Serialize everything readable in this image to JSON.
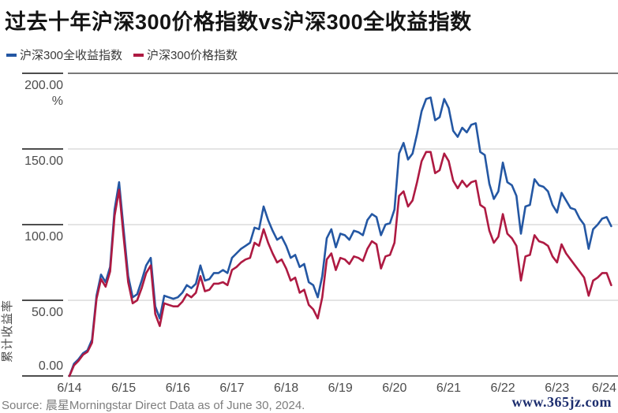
{
  "header": {
    "title": "过去十年沪深300价格指数vs沪深300全收益指数"
  },
  "legend": [
    {
      "label": "沪深300全收益指数",
      "color": "#2457a3"
    },
    {
      "label": "沪深300价格指数",
      "color": "#ae1a42"
    }
  ],
  "footer": {
    "source": "Source: 晨星Morningstar Direct Data as of June 30, 2024.",
    "watermark": "www.365jz.com"
  },
  "chart_data": {
    "type": "line",
    "title": "过去十年沪深300价格指数vs沪深300全收益指数",
    "ylabel": "累计收益率",
    "unit": "%",
    "ylim": [
      0,
      200
    ],
    "grid": true,
    "legend_position": "top-left",
    "frequency": "monthly",
    "x_start": "2014-06",
    "x_end": "2024-06",
    "x_ticks": [
      "6/14",
      "6/15",
      "6/16",
      "6/17",
      "6/18",
      "6/19",
      "6/20",
      "6/21",
      "6/22",
      "6/23",
      "6/24"
    ],
    "y_ticks": [
      {
        "value": 200,
        "label": "200.00"
      },
      {
        "value": 150,
        "label": "150.00"
      },
      {
        "value": 100,
        "label": "100.00"
      },
      {
        "value": 50,
        "label": "50.00"
      },
      {
        "value": 0,
        "label": "0.00"
      }
    ],
    "series": [
      {
        "name": "沪深300全收益指数",
        "color": "#2457a3",
        "values": [
          0,
          8,
          11,
          15,
          17,
          24,
          53,
          67,
          62,
          72,
          110,
          128,
          97,
          66,
          52,
          54,
          63,
          73,
          78,
          46,
          38,
          53,
          52,
          51,
          52,
          55,
          60,
          58,
          61,
          73,
          63,
          64,
          68,
          68,
          70,
          68,
          78,
          81,
          84,
          86,
          88,
          98,
          97,
          112,
          103,
          96,
          90,
          92,
          86,
          78,
          80,
          72,
          74,
          62,
          60,
          52,
          66,
          91,
          97,
          85,
          94,
          93,
          90,
          96,
          95,
          93,
          103,
          107,
          105,
          93,
          100,
          101,
          110,
          147,
          154,
          143,
          147,
          160,
          175,
          183,
          184,
          169,
          171,
          183,
          177,
          162,
          158,
          164,
          161,
          166,
          167,
          148,
          146,
          127,
          117,
          122,
          141,
          128,
          126,
          119,
          94,
          112,
          113,
          130,
          126,
          125,
          122,
          113,
          108,
          121,
          116,
          111,
          110,
          104,
          100,
          84,
          97,
          100,
          104,
          105,
          99
        ]
      },
      {
        "name": "沪深300价格指数",
        "color": "#ae1a42",
        "values": [
          0,
          7,
          10,
          14,
          16,
          22,
          51,
          64,
          59,
          69,
          106,
          123,
          92,
          62,
          48,
          50,
          58,
          68,
          73,
          41,
          33,
          48,
          47,
          46,
          46,
          49,
          54,
          52,
          55,
          66,
          56,
          57,
          61,
          61,
          62,
          60,
          70,
          72,
          75,
          77,
          78,
          88,
          86,
          97,
          88,
          81,
          75,
          77,
          71,
          63,
          65,
          55,
          57,
          47,
          44,
          38,
          52,
          77,
          81,
          70,
          78,
          77,
          74,
          79,
          78,
          76,
          84,
          89,
          87,
          71,
          79,
          80,
          88,
          119,
          122,
          112,
          116,
          128,
          142,
          148,
          148,
          134,
          136,
          147,
          142,
          129,
          124,
          129,
          125,
          128,
          129,
          113,
          111,
          96,
          88,
          92,
          107,
          94,
          91,
          86,
          63,
          79,
          80,
          93,
          89,
          88,
          86,
          79,
          75,
          87,
          81,
          77,
          73,
          69,
          65,
          53,
          63,
          65,
          68,
          68,
          60
        ]
      }
    ]
  }
}
